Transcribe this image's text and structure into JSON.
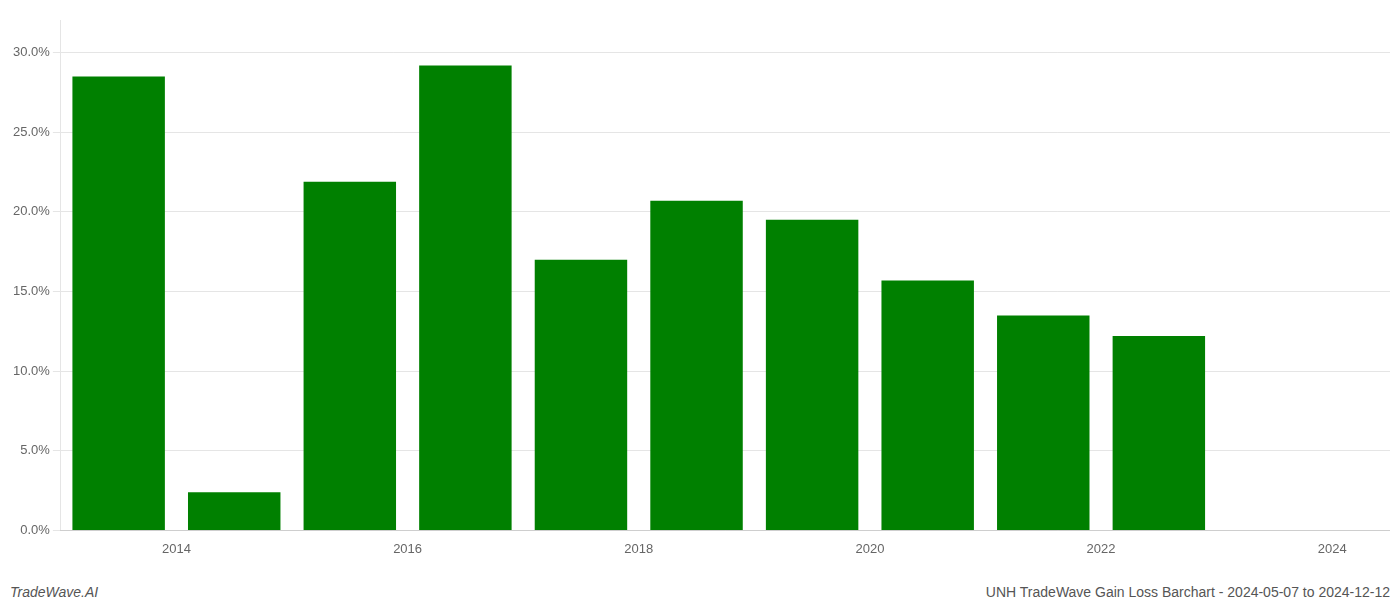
{
  "chart_data": {
    "type": "bar",
    "x": [
      2014,
      2015,
      2016,
      2017,
      2018,
      2019,
      2020,
      2021,
      2022,
      2023
    ],
    "values": [
      0.285,
      0.024,
      0.219,
      0.292,
      0.17,
      0.207,
      0.195,
      0.157,
      0.135,
      0.122
    ],
    "color": "#008000",
    "xlim": [
      2013.5,
      2025.0
    ],
    "xticks": [
      {
        "value": 2014.5,
        "label": "2014"
      },
      {
        "value": 2016.5,
        "label": "2016"
      },
      {
        "value": 2018.5,
        "label": "2018"
      },
      {
        "value": 2020.5,
        "label": "2020"
      },
      {
        "value": 2022.5,
        "label": "2022"
      },
      {
        "value": 2024.5,
        "label": "2024"
      }
    ],
    "ylim": [
      0,
      0.32
    ],
    "yticks": [
      {
        "value": 0.0,
        "label": "0.0%"
      },
      {
        "value": 0.05,
        "label": "5.0%"
      },
      {
        "value": 0.1,
        "label": "10.0%"
      },
      {
        "value": 0.15,
        "label": "15.0%"
      },
      {
        "value": 0.2,
        "label": "20.0%"
      },
      {
        "value": 0.25,
        "label": "25.0%"
      },
      {
        "value": 0.3,
        "label": "30.0%"
      }
    ],
    "grid": true,
    "annotations": [
      "TradeWave.AI",
      "UNH TradeWave Gain Loss Barchart - 2024-05-07 to 2024-12-12"
    ]
  }
}
